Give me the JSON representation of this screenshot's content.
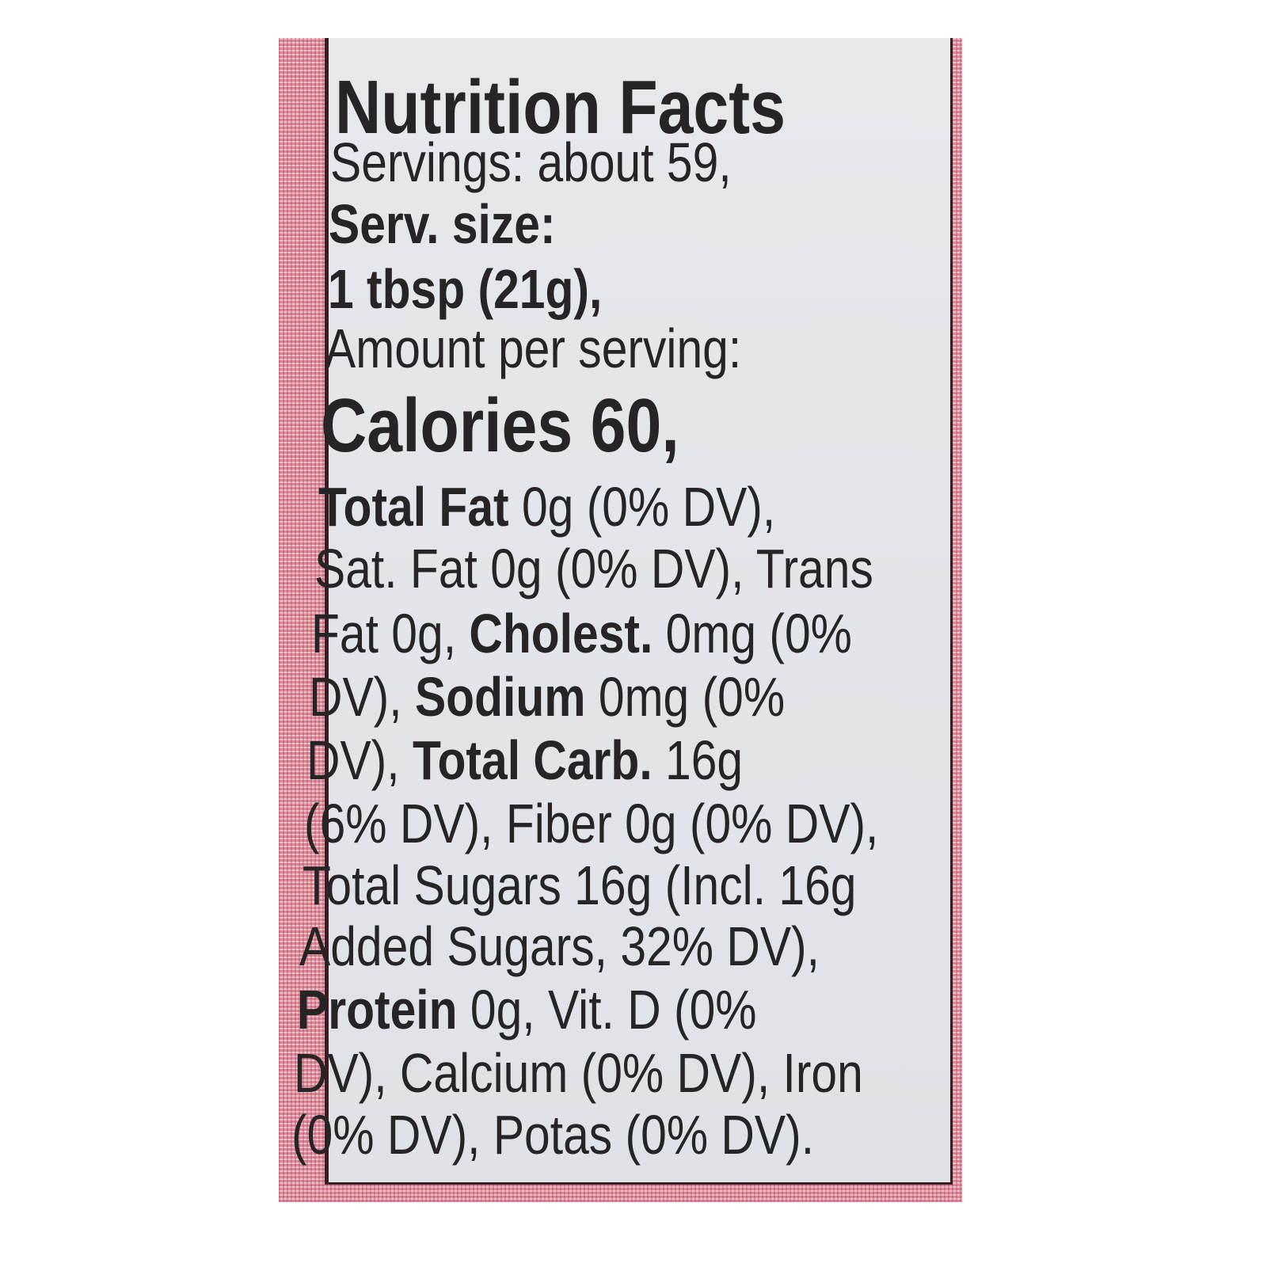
{
  "label": {
    "title": "Nutrition Facts",
    "lines": [
      [
        {
          "t": "Servings: about 59,",
          "b": false
        }
      ],
      [
        {
          "t": "Serv. size:",
          "b": true
        }
      ],
      [
        {
          "t": "1 tbsp (21g),",
          "b": true
        }
      ],
      [
        {
          "t": "Amount per serving:",
          "b": false
        }
      ],
      [
        {
          "t": "Calories 60,",
          "b": true
        }
      ],
      [
        {
          "t": "Total Fat",
          "b": true
        },
        {
          "t": " 0g (0% DV),",
          "b": false
        }
      ],
      [
        {
          "t": "Sat. Fat 0g (0% DV), Trans",
          "b": false
        }
      ],
      [
        {
          "t": "Fat 0g, ",
          "b": false
        },
        {
          "t": "Cholest.",
          "b": true
        },
        {
          "t": " 0mg (0%",
          "b": false
        }
      ],
      [
        {
          "t": "DV), ",
          "b": false
        },
        {
          "t": "Sodium",
          "b": true
        },
        {
          "t": " 0mg (0%",
          "b": false
        }
      ],
      [
        {
          "t": "DV), ",
          "b": false
        },
        {
          "t": "Total Carb.",
          "b": true
        },
        {
          "t": " 16g",
          "b": false
        }
      ],
      [
        {
          "t": "(6% DV), Fiber 0g (0% DV),",
          "b": false
        }
      ],
      [
        {
          "t": "Total Sugars 16g (Incl. 16g",
          "b": false
        }
      ],
      [
        {
          "t": "Added Sugars, 32% DV),",
          "b": false
        }
      ],
      [
        {
          "t": "Protein",
          "b": true
        },
        {
          "t": " 0g, Vit. D (0%",
          "b": false
        }
      ],
      [
        {
          "t": "DV), Calcium (0% DV), Iron",
          "b": false
        }
      ],
      [
        {
          "t": "(0% DV), Potas (0% DV).",
          "b": false
        }
      ]
    ]
  },
  "colors": {
    "border_pink": "#e2a0ab",
    "label_bg": "#e4e6ea",
    "text": "#262424"
  }
}
